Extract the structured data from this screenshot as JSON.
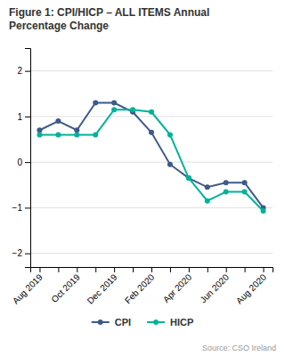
{
  "chart_data": {
    "type": "line",
    "title": "Figure 1: CPI/HICP – ALL ITEMS Annual\nPercentage Change",
    "categories": [
      "Aug 2019",
      null,
      "Oct 2019",
      null,
      "Dec 2019",
      null,
      "Feb 2020",
      null,
      "Apr 2020",
      null,
      "Jun 2020",
      null,
      "Aug 2020"
    ],
    "series": [
      {
        "name": "CPI",
        "color": "#3d5a8a",
        "values": [
          0.7,
          0.9,
          0.7,
          1.3,
          1.3,
          1.1,
          0.65,
          -0.05,
          -0.35,
          -0.55,
          -0.45,
          -0.45,
          -1.0
        ]
      },
      {
        "name": "HICP",
        "color": "#00b398",
        "values": [
          0.6,
          0.6,
          0.6,
          0.6,
          1.15,
          1.15,
          1.1,
          0.6,
          -0.35,
          -0.85,
          -0.65,
          -0.65,
          -1.07
        ]
      }
    ],
    "ylim": [
      -2.3,
      2.5
    ],
    "yticks": [
      {
        "value": -2,
        "label": "−2"
      },
      {
        "value": -1,
        "label": "−1"
      },
      0,
      1,
      2
    ],
    "grid": true,
    "legend": "bottom",
    "marker": "circle",
    "annotations": [
      "Source: CSO Ireland"
    ]
  }
}
